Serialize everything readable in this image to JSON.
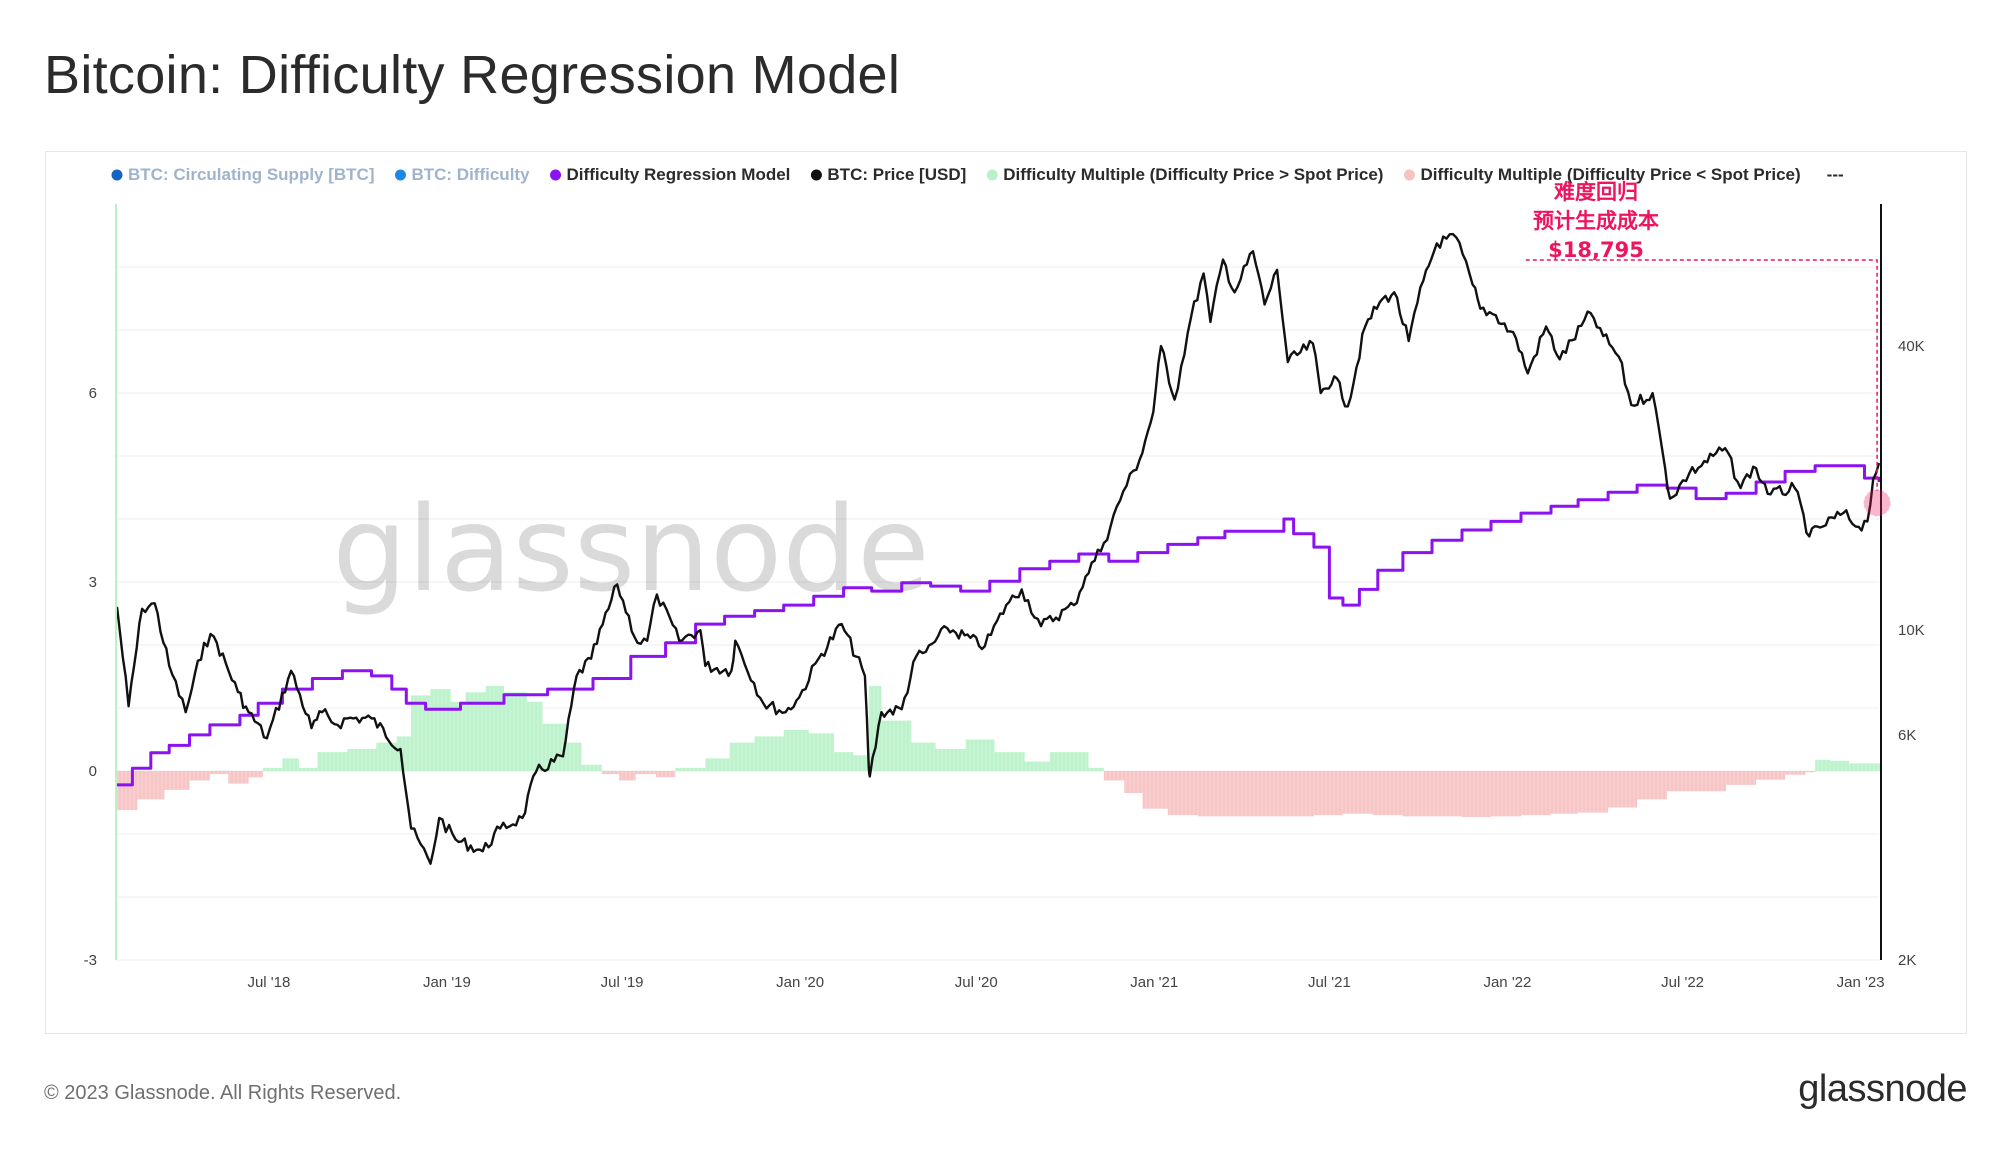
{
  "page": {
    "title": "Bitcoin: Difficulty Regression Model",
    "copyright": "© 2023 Glassnode. All Rights Reserved.",
    "logo": "glassnode",
    "watermark": "glassnode"
  },
  "legend": [
    {
      "label": "BTC: Circulating Supply [BTC]",
      "color": "#1565c0",
      "active": false
    },
    {
      "label": "BTC: Difficulty",
      "color": "#1e88e5",
      "active": false
    },
    {
      "label": "Difficulty Regression Model",
      "color": "#8c12f0",
      "active": true
    },
    {
      "label": "BTC: Price [USD]",
      "color": "#111111",
      "active": true
    },
    {
      "label": "Difficulty Multiple (Difficulty Price > Spot Price)",
      "color": "#b9f2c9",
      "active": true
    },
    {
      "label": "Difficulty Multiple (Difficulty Price < Spot Price)",
      "color": "#f7c2c2",
      "active": true
    },
    {
      "label": "---",
      "color": "",
      "active": true
    }
  ],
  "annotation": {
    "lines": [
      "难度回归",
      "预计生成成本",
      "$18,795"
    ],
    "value_usd": 18795,
    "color": "#ee1560"
  },
  "chart_data": {
    "type": "line",
    "x_axis": {
      "type": "date",
      "range": [
        "2018-01-24",
        "2023-01-20"
      ],
      "ticks": [
        "Jul '18",
        "Jan '19",
        "Jul '19",
        "Jan '20",
        "Jul '20",
        "Jan '21",
        "Jul '21",
        "Jan '22",
        "Jul '22",
        "Jan '23"
      ],
      "tick_dates": [
        "2018-07-01",
        "2019-01-01",
        "2019-07-01",
        "2020-01-01",
        "2020-07-01",
        "2021-01-01",
        "2021-07-01",
        "2022-01-01",
        "2022-07-01",
        "2023-01-01"
      ]
    },
    "y_left": {
      "range": [
        -3,
        9
      ],
      "ticks": [
        "6",
        "3",
        "0",
        "-3"
      ],
      "tick_values": [
        6,
        3,
        0,
        -3
      ]
    },
    "y_right": {
      "scale": "log",
      "range": [
        2000,
        80000
      ],
      "ticks": [
        "40K",
        "10K",
        "6K",
        "2K"
      ],
      "tick_values": [
        40000,
        10000,
        6000,
        2000
      ]
    },
    "price_usd": [
      [
        "2018-01-25",
        11200
      ],
      [
        "2018-02-06",
        6900
      ],
      [
        "2018-02-20",
        11100
      ],
      [
        "2018-03-05",
        11400
      ],
      [
        "2018-03-20",
        8400
      ],
      [
        "2018-04-06",
        6700
      ],
      [
        "2018-04-25",
        9400
      ],
      [
        "2018-05-05",
        9700
      ],
      [
        "2018-05-30",
        7400
      ],
      [
        "2018-06-10",
        6700
      ],
      [
        "2018-06-29",
        5900
      ],
      [
        "2018-07-24",
        8200
      ],
      [
        "2018-08-14",
        6200
      ],
      [
        "2018-08-25",
        6700
      ],
      [
        "2018-09-10",
        6300
      ],
      [
        "2018-09-20",
        6500
      ],
      [
        "2018-10-15",
        6500
      ],
      [
        "2018-11-14",
        5600
      ],
      [
        "2018-11-25",
        3800
      ],
      [
        "2018-12-15",
        3200
      ],
      [
        "2018-12-24",
        4000
      ],
      [
        "2019-01-10",
        3600
      ],
      [
        "2019-02-07",
        3400
      ],
      [
        "2019-02-25",
        3800
      ],
      [
        "2019-03-20",
        4000
      ],
      [
        "2019-04-03",
        5000
      ],
      [
        "2019-05-01",
        5400
      ],
      [
        "2019-05-15",
        8000
      ],
      [
        "2019-05-30",
        8700
      ],
      [
        "2019-06-26",
        12500
      ],
      [
        "2019-07-17",
        9400
      ],
      [
        "2019-07-27",
        9500
      ],
      [
        "2019-08-06",
        11900
      ],
      [
        "2019-08-29",
        9500
      ],
      [
        "2019-09-20",
        10000
      ],
      [
        "2019-09-25",
        8400
      ],
      [
        "2019-10-22",
        8200
      ],
      [
        "2019-10-26",
        9500
      ],
      [
        "2019-11-24",
        7000
      ],
      [
        "2019-12-17",
        6700
      ],
      [
        "2019-12-31",
        7200
      ],
      [
        "2020-01-20",
        8700
      ],
      [
        "2020-02-13",
        10300
      ],
      [
        "2020-03-08",
        8000
      ],
      [
        "2020-03-12",
        5100
      ],
      [
        "2020-03-13",
        4900
      ],
      [
        "2020-03-25",
        6700
      ],
      [
        "2020-04-15",
        6800
      ],
      [
        "2020-04-30",
        8800
      ],
      [
        "2020-05-10",
        9000
      ],
      [
        "2020-06-01",
        10100
      ],
      [
        "2020-07-10",
        9250
      ],
      [
        "2020-08-01",
        11300
      ],
      [
        "2020-08-17",
        12200
      ],
      [
        "2020-09-06",
        10200
      ],
      [
        "2020-10-10",
        11300
      ],
      [
        "2020-10-22",
        13000
      ],
      [
        "2020-11-10",
        15300
      ],
      [
        "2020-11-30",
        19700
      ],
      [
        "2020-12-17",
        23000
      ],
      [
        "2020-12-31",
        29000
      ],
      [
        "2021-01-08",
        40000
      ],
      [
        "2021-01-22",
        30800
      ],
      [
        "2021-02-08",
        46000
      ],
      [
        "2021-02-21",
        57000
      ],
      [
        "2021-02-28",
        45000
      ],
      [
        "2021-03-13",
        61000
      ],
      [
        "2021-03-25",
        52000
      ],
      [
        "2021-04-13",
        63500
      ],
      [
        "2021-04-25",
        49000
      ],
      [
        "2021-05-08",
        58000
      ],
      [
        "2021-05-19",
        37000
      ],
      [
        "2021-06-14",
        40500
      ],
      [
        "2021-06-22",
        31800
      ],
      [
        "2021-07-06",
        34500
      ],
      [
        "2021-07-20",
        29800
      ],
      [
        "2021-08-07",
        44000
      ],
      [
        "2021-08-22",
        49500
      ],
      [
        "2021-09-06",
        52000
      ],
      [
        "2021-09-21",
        41000
      ],
      [
        "2021-10-06",
        55000
      ],
      [
        "2021-10-20",
        66000
      ],
      [
        "2021-11-09",
        68000
      ],
      [
        "2021-11-26",
        54000
      ],
      [
        "2021-12-04",
        48000
      ],
      [
        "2021-12-20",
        46500
      ],
      [
        "2022-01-10",
        41500
      ],
      [
        "2022-01-22",
        35000
      ],
      [
        "2022-02-10",
        44000
      ],
      [
        "2022-02-24",
        37500
      ],
      [
        "2022-03-28",
        47000
      ],
      [
        "2022-04-10",
        42000
      ],
      [
        "2022-04-26",
        38000
      ],
      [
        "2022-05-09",
        30000
      ],
      [
        "2022-05-31",
        31800
      ],
      [
        "2022-06-13",
        22000
      ],
      [
        "2022-06-18",
        19000
      ],
      [
        "2022-07-08",
        21500
      ],
      [
        "2022-08-14",
        24300
      ],
      [
        "2022-08-30",
        20000
      ],
      [
        "2022-09-12",
        22200
      ],
      [
        "2022-09-30",
        19400
      ],
      [
        "2022-10-25",
        20000
      ],
      [
        "2022-11-09",
        15800
      ],
      [
        "2022-11-20",
        16500
      ],
      [
        "2022-12-14",
        17700
      ],
      [
        "2022-12-30",
        16550
      ],
      [
        "2023-01-08",
        17000
      ],
      [
        "2023-01-14",
        20900
      ],
      [
        "2023-01-20",
        22600
      ]
    ],
    "difficulty_regression_model_usd": [
      [
        "2018-01-25",
        4700
      ],
      [
        "2018-02-10",
        5100
      ],
      [
        "2018-03-01",
        5500
      ],
      [
        "2018-03-20",
        5700
      ],
      [
        "2018-04-10",
        6000
      ],
      [
        "2018-05-01",
        6300
      ],
      [
        "2018-06-01",
        6600
      ],
      [
        "2018-06-20",
        7000
      ],
      [
        "2018-07-15",
        7500
      ],
      [
        "2018-08-15",
        7900
      ],
      [
        "2018-09-15",
        8200
      ],
      [
        "2018-10-15",
        8000
      ],
      [
        "2018-11-05",
        7500
      ],
      [
        "2018-11-20",
        7000
      ],
      [
        "2018-12-10",
        6800
      ],
      [
        "2019-01-15",
        7000
      ],
      [
        "2019-03-01",
        7300
      ],
      [
        "2019-04-15",
        7500
      ],
      [
        "2019-06-01",
        7900
      ],
      [
        "2019-07-10",
        8800
      ],
      [
        "2019-08-15",
        9400
      ],
      [
        "2019-09-15",
        10300
      ],
      [
        "2019-10-15",
        10700
      ],
      [
        "2019-11-15",
        11000
      ],
      [
        "2019-12-15",
        11300
      ],
      [
        "2020-01-15",
        11800
      ],
      [
        "2020-02-15",
        12300
      ],
      [
        "2020-03-15",
        12100
      ],
      [
        "2020-04-15",
        12600
      ],
      [
        "2020-05-15",
        12400
      ],
      [
        "2020-06-15",
        12100
      ],
      [
        "2020-07-15",
        12700
      ],
      [
        "2020-08-15",
        13500
      ],
      [
        "2020-09-15",
        14000
      ],
      [
        "2020-10-15",
        14500
      ],
      [
        "2020-11-15",
        14000
      ],
      [
        "2020-12-15",
        14600
      ],
      [
        "2021-01-15",
        15200
      ],
      [
        "2021-02-15",
        15700
      ],
      [
        "2021-03-15",
        16200
      ],
      [
        "2021-04-15",
        16200
      ],
      [
        "2021-05-15",
        17200
      ],
      [
        "2021-05-25",
        16000
      ],
      [
        "2021-06-15",
        15000
      ],
      [
        "2021-07-01",
        11700
      ],
      [
        "2021-07-15",
        11300
      ],
      [
        "2021-08-01",
        12200
      ],
      [
        "2021-08-20",
        13400
      ],
      [
        "2021-09-15",
        14600
      ],
      [
        "2021-10-15",
        15500
      ],
      [
        "2021-11-15",
        16300
      ],
      [
        "2021-12-15",
        17000
      ],
      [
        "2022-01-15",
        17700
      ],
      [
        "2022-02-15",
        18300
      ],
      [
        "2022-03-15",
        18900
      ],
      [
        "2022-04-15",
        19600
      ],
      [
        "2022-05-15",
        20300
      ],
      [
        "2022-06-15",
        20000
      ],
      [
        "2022-07-15",
        19000
      ],
      [
        "2022-08-15",
        19500
      ],
      [
        "2022-09-15",
        20600
      ],
      [
        "2022-10-15",
        21700
      ],
      [
        "2022-11-15",
        22300
      ],
      [
        "2022-12-15",
        22300
      ],
      [
        "2023-01-05",
        21000
      ],
      [
        "2023-01-20",
        20600
      ]
    ],
    "difficulty_multiple": [
      [
        "2018-01-25",
        -0.62
      ],
      [
        "2018-02-15",
        -0.45
      ],
      [
        "2018-03-15",
        -0.3
      ],
      [
        "2018-04-10",
        -0.15
      ],
      [
        "2018-05-01",
        -0.05
      ],
      [
        "2018-05-20",
        -0.2
      ],
      [
        "2018-06-10",
        -0.1
      ],
      [
        "2018-06-25",
        0.05
      ],
      [
        "2018-07-15",
        0.2
      ],
      [
        "2018-08-01",
        0.05
      ],
      [
        "2018-08-20",
        0.3
      ],
      [
        "2018-09-20",
        0.35
      ],
      [
        "2018-10-20",
        0.45
      ],
      [
        "2018-11-10",
        0.55
      ],
      [
        "2018-11-25",
        1.2
      ],
      [
        "2018-12-15",
        1.3
      ],
      [
        "2019-01-05",
        1.1
      ],
      [
        "2019-01-20",
        1.25
      ],
      [
        "2019-02-10",
        1.35
      ],
      [
        "2019-03-01",
        1.25
      ],
      [
        "2019-03-25",
        1.1
      ],
      [
        "2019-04-10",
        0.75
      ],
      [
        "2019-05-05",
        0.45
      ],
      [
        "2019-05-20",
        0.1
      ],
      [
        "2019-06-10",
        -0.05
      ],
      [
        "2019-06-28",
        -0.15
      ],
      [
        "2019-07-15",
        -0.05
      ],
      [
        "2019-08-05",
        -0.1
      ],
      [
        "2019-08-25",
        0.05
      ],
      [
        "2019-09-25",
        0.2
      ],
      [
        "2019-10-20",
        0.45
      ],
      [
        "2019-11-15",
        0.55
      ],
      [
        "2019-12-15",
        0.65
      ],
      [
        "2020-01-10",
        0.6
      ],
      [
        "2020-02-05",
        0.3
      ],
      [
        "2020-02-25",
        0.25
      ],
      [
        "2020-03-12",
        1.35
      ],
      [
        "2020-03-25",
        0.8
      ],
      [
        "2020-04-25",
        0.45
      ],
      [
        "2020-05-20",
        0.35
      ],
      [
        "2020-06-20",
        0.5
      ],
      [
        "2020-07-20",
        0.3
      ],
      [
        "2020-08-20",
        0.15
      ],
      [
        "2020-09-15",
        0.3
      ],
      [
        "2020-10-05",
        0.3
      ],
      [
        "2020-10-25",
        0.05
      ],
      [
        "2020-11-10",
        -0.15
      ],
      [
        "2020-12-01",
        -0.35
      ],
      [
        "2020-12-20",
        -0.6
      ],
      [
        "2021-01-15",
        -0.7
      ],
      [
        "2021-02-15",
        -0.72
      ],
      [
        "2021-03-15",
        -0.72
      ],
      [
        "2021-04-15",
        -0.72
      ],
      [
        "2021-05-15",
        -0.72
      ],
      [
        "2021-06-15",
        -0.7
      ],
      [
        "2021-07-15",
        -0.68
      ],
      [
        "2021-08-15",
        -0.7
      ],
      [
        "2021-09-15",
        -0.72
      ],
      [
        "2021-10-15",
        -0.72
      ],
      [
        "2021-11-15",
        -0.73
      ],
      [
        "2021-12-15",
        -0.72
      ],
      [
        "2022-01-15",
        -0.7
      ],
      [
        "2022-02-15",
        -0.68
      ],
      [
        "2022-03-15",
        -0.66
      ],
      [
        "2022-04-15",
        -0.58
      ],
      [
        "2022-05-15",
        -0.45
      ],
      [
        "2022-06-15",
        -0.32
      ],
      [
        "2022-07-15",
        -0.32
      ],
      [
        "2022-08-15",
        -0.22
      ],
      [
        "2022-09-15",
        -0.14
      ],
      [
        "2022-10-15",
        -0.06
      ],
      [
        "2022-11-05",
        -0.02
      ],
      [
        "2022-11-15",
        0.18
      ],
      [
        "2022-12-01",
        0.16
      ],
      [
        "2022-12-20",
        0.12
      ],
      [
        "2023-01-20",
        0.12
      ]
    ],
    "ylabel_left": "",
    "ylabel_right": "",
    "grid": true,
    "legend_position": "top"
  }
}
